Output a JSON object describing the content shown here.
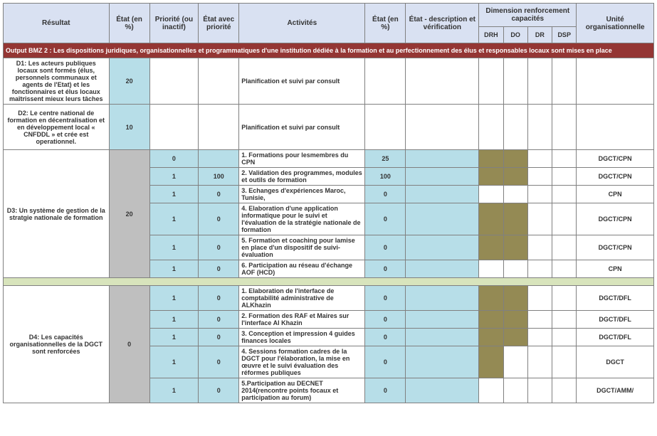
{
  "headers": {
    "resultat": "Résultat",
    "etat_pct": "État (en %)",
    "priorite": "Priorité (ou inactif)",
    "etat_prio": "État avec priorité",
    "activites": "Activités",
    "etat_pct2": "État (en %)",
    "desc": "État - description et vérification",
    "dim_group": "Dimension renforcement capacités",
    "drh": "DRH",
    "do": "DO",
    "dr": "DR",
    "dsp": "DSP",
    "unite": "Unité organisationnelle"
  },
  "bmz": "Output BMZ 2 : Les dispositions juridiques, organisationnelles et programmatiques d'une institution dédiée à la formation et au perfectionnement des élus et responsables locaux sont mises en place",
  "d1": {
    "result": "D1: Les acteurs publiques locaux sont formés  (élus, personnels communaux et agents de l'Etat) et les fonctionnaires et élus locaux maîtrissent mieux leurs tâches",
    "etat": "20",
    "act": "Planification et suivi par consult"
  },
  "d2": {
    "result": "D2: Le centre national de formation en décentralisation et en développement local « CNFDDL » et crée est operationnel.",
    "etat": "10",
    "act": "Planification et suivi par consult"
  },
  "d3": {
    "result": "D3: Un système de gestion de la stratgie nationale de formation",
    "etat": "20",
    "rows": [
      {
        "prio": "0",
        "ep": "",
        "act": "1. Formations pour lesmembres du CPN",
        "e2": "25",
        "drh": 1,
        "do": 1,
        "u": "DGCT/CPN"
      },
      {
        "prio": "1",
        "ep": "100",
        "act": "2. Validation des programmes, modules et outils de formation",
        "e2": "100",
        "drh": 1,
        "do": 1,
        "u": "DGCT/CPN"
      },
      {
        "prio": "1",
        "ep": "0",
        "act": "3. Echanges d'expériences Maroc, Tunisie,",
        "e2": "0",
        "u": "CPN"
      },
      {
        "prio": "1",
        "ep": "0",
        "act": "4. Elaboration d'une application informatique pour le suivi et l'évaluation de la stratégie nationale de formation",
        "e2": "0",
        "drh": 1,
        "do": 1,
        "u": "DGCT/CPN"
      },
      {
        "prio": "1",
        "ep": "0",
        "act": "5. Formation et coaching pour lamise en place d'un dispositif de suivi-évaluation",
        "e2": "0",
        "drh": 1,
        "do": 1,
        "u": "DGCT/CPN"
      },
      {
        "prio": "1",
        "ep": "0",
        "act": "6. Participation au réseau d'échange AOF (HCD)",
        "e2": "0",
        "u": "CPN"
      }
    ]
  },
  "d4": {
    "result": "D4: Les capacités organisationnelles de la DGCT sont renforcées",
    "etat": "0",
    "rows": [
      {
        "prio": "1",
        "ep": "0",
        "act": "1. Elaboration de l'interface de comptabilité administrative de ALKhazin",
        "e2": "0",
        "drh": 1,
        "do": 1,
        "u": "DGCT/DFL"
      },
      {
        "prio": "1",
        "ep": "0",
        "act": "2. Formation des RAF et Maires sur l'interface Al Khazin",
        "e2": "0",
        "drh": 1,
        "do": 1,
        "u": "DGCT/DFL"
      },
      {
        "prio": "1",
        "ep": "0",
        "act": "3. Conception et impression 4 guides finances locales",
        "e2": "0",
        "drh": 1,
        "do": 1,
        "u": "DGCT/DFL"
      },
      {
        "prio": "1",
        "ep": "0",
        "act": "4. Sessions formation cadres de la DGCT pour l'élaboration, la mise en œuvre et le suivi évaluation des réformes publiques",
        "e2": "0",
        "drh": 1,
        "u": "DGCT"
      },
      {
        "prio": "1",
        "ep": "0",
        "act": "5.Participation au DECNET 2014(rencontre points focaux et participation au forum)",
        "e2": "0",
        "u": "DGCT/AMM/"
      }
    ]
  }
}
